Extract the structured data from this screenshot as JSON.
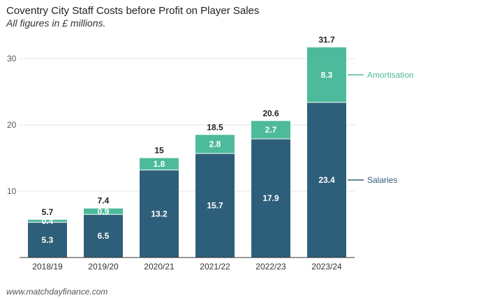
{
  "title": "Coventry City Staff Costs before Profit on Player Sales",
  "subtitle": "All figures in £ millions.",
  "footer": "www.matchdayfinance.com",
  "colors": {
    "salaries": "#2e5f7a",
    "amortisation": "#4dbb9b",
    "grid": "#e6e6e6",
    "axis": "#333333"
  },
  "chart_data": {
    "type": "bar",
    "stacked": true,
    "categories": [
      "2018/19",
      "2019/20",
      "2020/21",
      "2021/22",
      "2022/23",
      "2023/24"
    ],
    "series": [
      {
        "name": "Salaries",
        "values": [
          5.3,
          6.5,
          13.2,
          15.7,
          17.9,
          23.4
        ]
      },
      {
        "name": "Amortisation",
        "values": [
          0.4,
          0.9,
          1.8,
          2.8,
          2.7,
          8.3
        ]
      }
    ],
    "totals": [
      "5.7",
      "7.4",
      "15",
      "18.5",
      "20.6",
      "31.7"
    ],
    "yticks": [
      10,
      20,
      30
    ],
    "ylim": [
      0,
      32
    ],
    "grid": true,
    "legend": "right, direct labels beside last bar"
  }
}
